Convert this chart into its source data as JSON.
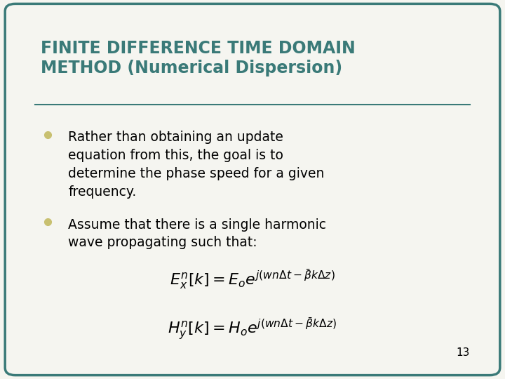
{
  "title_line1": "FINITE DIFFERENCE TIME DOMAIN",
  "title_line2": "METHOD (Numerical Dispersion)",
  "title_color": "#3a7a78",
  "background_color": "#f5f5f0",
  "border_color": "#3a7a78",
  "bullet_color": "#c8c070",
  "bullet1_lines": [
    "Rather than obtaining an update",
    "equation from this, the goal is to",
    "determine the phase speed for a given",
    "frequency."
  ],
  "bullet2_lines": [
    "Assume that there is a single harmonic",
    "wave propagating such that:"
  ],
  "page_number": "13",
  "separator_color": "#3a7a78",
  "text_color": "#000000",
  "title_fontsize": 17,
  "body_fontsize": 13.5,
  "eq_fontsize": 16
}
